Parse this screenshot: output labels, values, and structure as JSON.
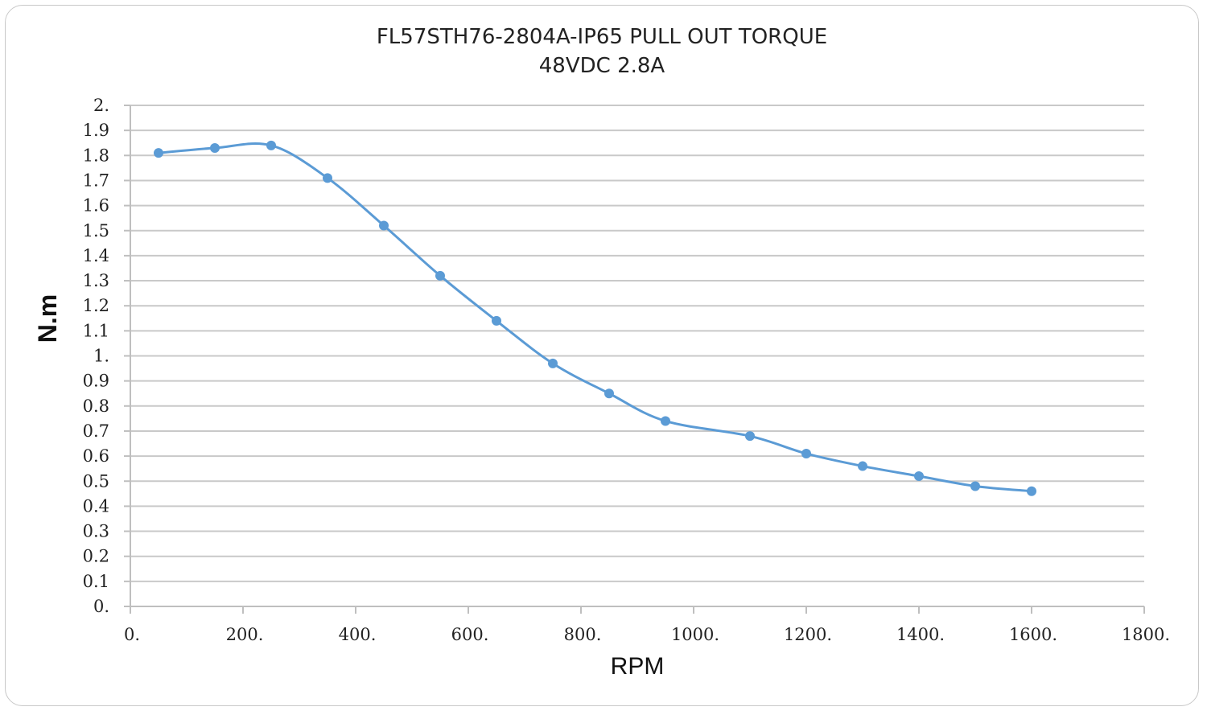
{
  "colors": {
    "series": "#5b9bd5",
    "grid": "#c9c9c9",
    "axis": "#bfbfbf"
  },
  "chart_data": {
    "type": "line",
    "title": "FL57STH76-2804A-IP65 PULL  OUT  TORQUE",
    "subtitle": "48VDC 2.8A",
    "xlabel": "RPM",
    "ylabel": "N.m",
    "xlim": [
      0,
      1800
    ],
    "ylim": [
      0,
      2
    ],
    "x_ticks": [
      0,
      200,
      400,
      600,
      800,
      1000,
      1200,
      1400,
      1600,
      1800
    ],
    "x_tick_labels": [
      "0.",
      "200.",
      "400.",
      "600.",
      "800.",
      "1000.",
      "1200.",
      "1400.",
      "1600.",
      "1800."
    ],
    "y_ticks": [
      0,
      0.1,
      0.2,
      0.3,
      0.4,
      0.5,
      0.6,
      0.7,
      0.8,
      0.9,
      1,
      1.1,
      1.2,
      1.3,
      1.4,
      1.5,
      1.6,
      1.7,
      1.8,
      1.9,
      2
    ],
    "y_tick_labels": [
      "0.",
      "0.1",
      "0.2",
      "0.3",
      "0.4",
      "0.5",
      "0.6",
      "0.7",
      "0.8",
      "0.9",
      "1.",
      "1.1",
      "1.2",
      "1.3",
      "1.4",
      "1.5",
      "1.6",
      "1.7",
      "1.8",
      "1.9",
      "2."
    ],
    "grid": "horizontal",
    "legend": "none",
    "smooth": true,
    "series": [
      {
        "x": [
          50,
          150,
          250,
          350,
          450,
          550,
          650,
          750,
          850,
          950,
          1100,
          1200,
          1300,
          1400,
          1500,
          1600
        ],
        "y": [
          1.81,
          1.83,
          1.84,
          1.71,
          1.52,
          1.32,
          1.14,
          0.97,
          0.85,
          0.74,
          0.68,
          0.61,
          0.56,
          0.52,
          0.48,
          0.46
        ]
      }
    ]
  }
}
